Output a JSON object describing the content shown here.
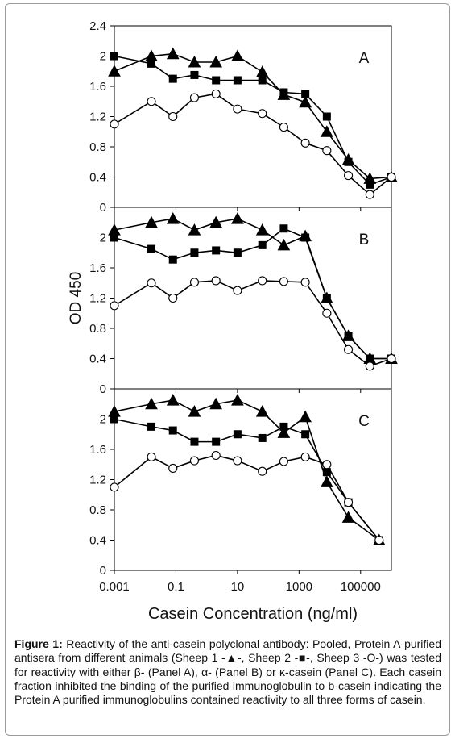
{
  "caption": {
    "label": "Figure 1:",
    "text": " Reactivity of the anti-casein polyclonal antibody: Pooled, Protein A-purified antisera from different animals (Sheep 1 -▲-, Sheep 2 -■-, Sheep 3 -O-) was tested for reactivity with either β- (Panel A), α- (Panel B) or κ-casein (Panel C). Each casein fraction inhibited the binding of the purified immunoglobulin to b-casein indicating the Protein A purified immunoglobulins contained reactivity to all three forms of casein."
  },
  "chart_data": [
    {
      "type": "line",
      "panel_label": "A",
      "xscale": "log",
      "xlim": [
        0.001,
        1000000
      ],
      "ylim": [
        0,
        2.4
      ],
      "yticks": [
        "0",
        "0.4",
        "0.8",
        "1.2",
        "1.6",
        "2",
        "2.4"
      ],
      "series": [
        {
          "marker": "triangle",
          "color": "#000000",
          "x": [
            0.001,
            0.016,
            0.08,
            0.4,
            2,
            10,
            64,
            320,
            1600,
            8000,
            40000,
            200000,
            1000000
          ],
          "y": [
            1.8,
            2.0,
            2.03,
            1.92,
            1.92,
            2.0,
            1.79,
            1.49,
            1.39,
            1.0,
            0.63,
            0.38,
            0.4
          ]
        },
        {
          "marker": "square",
          "color": "#000000",
          "x": [
            0.001,
            0.016,
            0.08,
            0.4,
            2,
            10,
            64,
            320,
            1600,
            8000,
            40000,
            200000,
            1000000
          ],
          "y": [
            2.0,
            1.9,
            1.7,
            1.75,
            1.68,
            1.68,
            1.68,
            1.52,
            1.5,
            1.2,
            0.6,
            0.3,
            0.4
          ]
        },
        {
          "marker": "circle",
          "color": "#000000",
          "x": [
            0.001,
            0.016,
            0.08,
            0.4,
            2,
            10,
            64,
            320,
            1600,
            8000,
            40000,
            200000,
            1000000
          ],
          "y": [
            1.1,
            1.4,
            1.2,
            1.45,
            1.5,
            1.3,
            1.24,
            1.06,
            0.85,
            0.75,
            0.42,
            0.17,
            0.4
          ]
        }
      ]
    },
    {
      "type": "line",
      "panel_label": "B",
      "xscale": "log",
      "xlim": [
        0.001,
        1000000
      ],
      "ylim": [
        0,
        2.4
      ],
      "yticks": [
        "0",
        "0.4",
        "0.8",
        "1.2",
        "1.6",
        "2"
      ],
      "ylabel": "OD 450",
      "series": [
        {
          "marker": "triangle",
          "color": "#000000",
          "x": [
            0.001,
            0.016,
            0.08,
            0.4,
            2,
            10,
            64,
            320,
            1600,
            8000,
            40000,
            200000,
            1000000
          ],
          "y": [
            2.1,
            2.2,
            2.25,
            2.1,
            2.2,
            2.25,
            2.1,
            1.9,
            2.02,
            1.2,
            0.7,
            0.4,
            0.4
          ]
        },
        {
          "marker": "square",
          "color": "#000000",
          "x": [
            0.001,
            0.016,
            0.08,
            0.4,
            2,
            10,
            64,
            320,
            1600,
            8000,
            40000,
            200000,
            1000000
          ],
          "y": [
            2.0,
            1.85,
            1.71,
            1.8,
            1.83,
            1.8,
            1.9,
            2.12,
            2.0,
            1.2,
            0.7,
            0.4,
            0.4
          ]
        },
        {
          "marker": "circle",
          "color": "#000000",
          "x": [
            0.001,
            0.016,
            0.08,
            0.4,
            2,
            10,
            64,
            320,
            1600,
            8000,
            40000,
            200000,
            1000000
          ],
          "y": [
            1.1,
            1.4,
            1.2,
            1.41,
            1.43,
            1.3,
            1.43,
            1.42,
            1.41,
            1.0,
            0.52,
            0.3,
            0.4
          ]
        }
      ]
    },
    {
      "type": "line",
      "panel_label": "C",
      "xscale": "log",
      "xlim": [
        0.001,
        1000000
      ],
      "ylim": [
        0,
        2.4
      ],
      "yticks": [
        "0",
        "0.4",
        "0.8",
        "1.2",
        "1.6",
        "2"
      ],
      "xticks": [
        "0.001",
        "0.1",
        "10",
        "1000",
        "100000"
      ],
      "xlabel": "Casein Concentration (ng/ml)",
      "series": [
        {
          "marker": "triangle",
          "color": "#000000",
          "x": [
            0.001,
            0.016,
            0.08,
            0.4,
            2,
            10,
            64,
            320,
            1600,
            8000,
            40000,
            400000
          ],
          "y": [
            2.1,
            2.2,
            2.25,
            2.1,
            2.2,
            2.25,
            2.1,
            1.82,
            2.03,
            1.17,
            0.7,
            0.4
          ]
        },
        {
          "marker": "square",
          "color": "#000000",
          "x": [
            0.001,
            0.016,
            0.08,
            0.4,
            2,
            10,
            64,
            320,
            1600,
            8000,
            40000,
            400000
          ],
          "y": [
            2.0,
            1.9,
            1.85,
            1.7,
            1.7,
            1.8,
            1.75,
            1.9,
            1.8,
            1.3,
            0.9,
            0.4
          ]
        },
        {
          "marker": "circle",
          "color": "#000000",
          "x": [
            0.001,
            0.016,
            0.08,
            0.4,
            2,
            10,
            64,
            320,
            1600,
            8000,
            40000,
            400000
          ],
          "y": [
            1.1,
            1.5,
            1.35,
            1.45,
            1.52,
            1.45,
            1.31,
            1.44,
            1.5,
            1.4,
            0.9,
            0.4
          ]
        }
      ]
    }
  ]
}
